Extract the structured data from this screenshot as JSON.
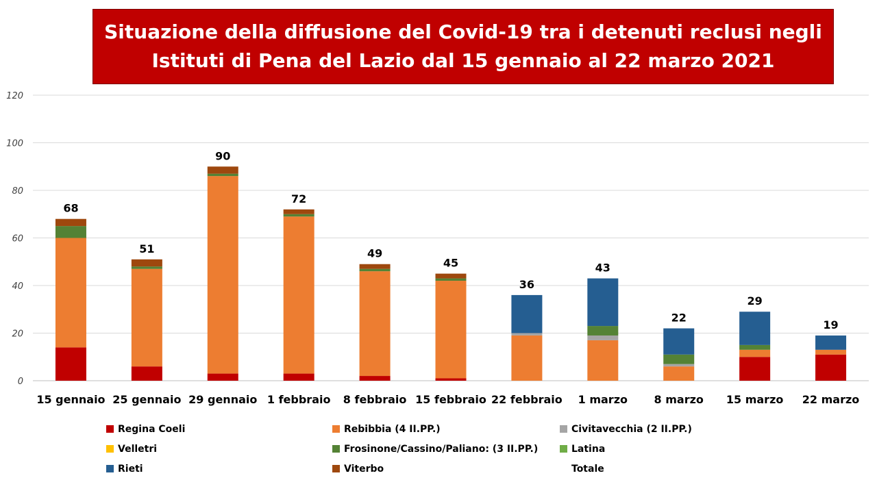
{
  "title": {
    "line1": "Situazione della diffusione del Covid-19 tra i detenuti reclusi negli",
    "line2": "Istituti di Pena del Lazio dal 15 gennaio al 22 marzo 2021"
  },
  "chart_data": {
    "type": "bar",
    "stacked": true,
    "title": "Situazione della diffusione del Covid-19 tra i detenuti reclusi negli Istituti di Pena del Lazio dal 15 gennaio al 22 marzo 2021",
    "categories": [
      "15 gennaio",
      "25 gennaio",
      "29 gennaio",
      "1 febbraio",
      "8 febbraio",
      "15 febbraio",
      "22 febbraio",
      "1 marzo",
      "8 marzo",
      "15 marzo",
      "22 marzo"
    ],
    "ylim": [
      0,
      120
    ],
    "yticks": [
      0,
      20,
      40,
      60,
      80,
      100,
      120
    ],
    "grid": true,
    "legend_position": "bottom",
    "series": [
      {
        "name": "Regina Coeli",
        "color": "#c00000",
        "values": [
          14,
          6,
          3,
          3,
          2,
          1,
          0,
          0,
          0,
          10,
          11
        ]
      },
      {
        "name": "Rebibbia (4 II.PP.)",
        "color": "#ed7d31",
        "values": [
          46,
          41,
          83,
          66,
          44,
          41,
          19,
          17,
          6,
          3,
          2
        ]
      },
      {
        "name": "Civitavecchia (2 II.PP.)",
        "color": "#a5a5a5",
        "values": [
          0,
          0,
          0,
          0,
          0,
          0,
          1,
          2,
          1,
          0,
          0
        ]
      },
      {
        "name": "Velletri",
        "color": "#ffc000",
        "values": [
          0,
          0,
          0,
          0,
          0,
          0,
          0,
          0,
          0,
          0,
          0
        ]
      },
      {
        "name": "Frosinone/Cassino/Paliano: (3 II.PP.)",
        "color": "#548235",
        "values": [
          5,
          1,
          1,
          1,
          1,
          1,
          0,
          4,
          4,
          2,
          0
        ]
      },
      {
        "name": "Latina",
        "color": "#70ad47",
        "values": [
          0,
          0,
          0,
          0,
          0,
          0,
          0,
          0,
          0,
          0,
          0
        ]
      },
      {
        "name": "Rieti",
        "color": "#255e91",
        "values": [
          0,
          0,
          0,
          0,
          0,
          0,
          16,
          20,
          11,
          14,
          6
        ]
      },
      {
        "name": "Viterbo",
        "color": "#9e480e",
        "values": [
          3,
          3,
          3,
          2,
          2,
          2,
          0,
          0,
          0,
          0,
          0
        ]
      }
    ],
    "totals_label": "Totale",
    "totals": [
      68,
      51,
      90,
      72,
      49,
      45,
      36,
      43,
      22,
      29,
      19
    ]
  }
}
